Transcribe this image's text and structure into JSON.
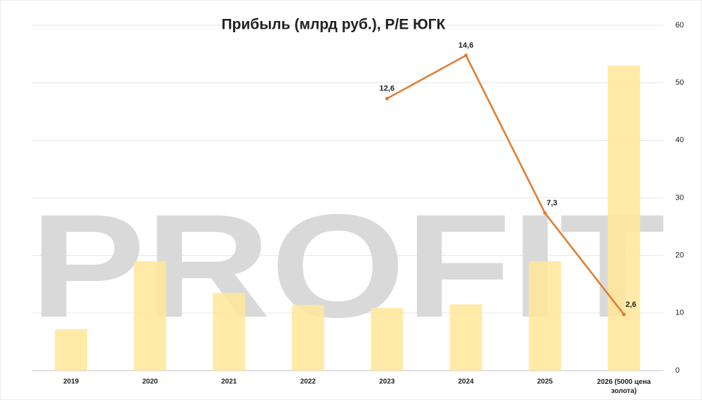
{
  "chart_data": {
    "type": "bar_line",
    "title": "Прибыль (млрд руб.), P/E ЮГК",
    "watermark": "PROFIT",
    "categories": [
      "2019",
      "2020",
      "2021",
      "2022",
      "2023",
      "2024",
      "2025",
      "2026 (5000 цена золота)"
    ],
    "series": [
      {
        "type": "bar",
        "color": "#ffe699",
        "values": [
          7.2,
          19,
          13.5,
          11.4,
          10.9,
          11.5,
          19,
          53
        ]
      },
      {
        "type": "line",
        "axis": "y2",
        "color": "#e07b2e",
        "values": [
          null,
          null,
          null,
          null,
          12.6,
          14.6,
          7.3,
          2.6
        ],
        "value_labels": [
          null,
          null,
          null,
          null,
          "12,6",
          "14,6",
          "7,3",
          "2,6"
        ]
      }
    ],
    "ylim": [
      0,
      60
    ],
    "yticks": [
      0,
      10,
      20,
      30,
      40,
      50,
      60
    ],
    "y2lim": [
      0,
      16
    ],
    "grid": true
  }
}
